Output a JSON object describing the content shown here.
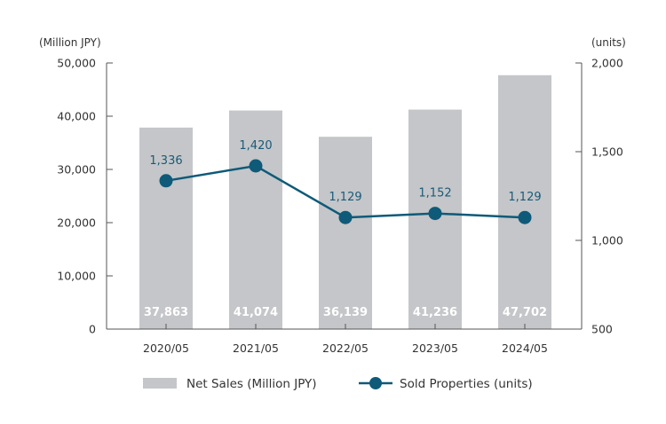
{
  "chart_data": {
    "type": "bar",
    "categories": [
      "2020/05",
      "2021/05",
      "2022/05",
      "2023/05",
      "2024/05"
    ],
    "series": [
      {
        "name": "Net Sales (Million JPY)",
        "type": "bar",
        "axis": "left",
        "values": [
          37863,
          41074,
          36139,
          41236,
          47702
        ],
        "labels": [
          "37,863",
          "41,074",
          "36,139",
          "41,236",
          "47,702"
        ],
        "color": "#c4c6c9"
      },
      {
        "name": "Sold Properties (units)",
        "type": "line",
        "axis": "right",
        "values": [
          1336,
          1420,
          1129,
          1152,
          1129
        ],
        "labels": [
          "1,336",
          "1,420",
          "1,129",
          "1,152",
          "1,129"
        ],
        "color": "#0e5a78"
      }
    ],
    "left_axis": {
      "unit_label": "(Million JPY)",
      "ylim": [
        0,
        50000
      ],
      "ticks": [
        0,
        10000,
        20000,
        30000,
        40000,
        50000
      ],
      "tick_labels": [
        "0",
        "10,000",
        "20,000",
        "30,000",
        "40,000",
        "50,000"
      ]
    },
    "right_axis": {
      "unit_label": "(units)",
      "ylim": [
        500,
        2000
      ],
      "ticks": [
        500,
        1000,
        1500,
        2000
      ],
      "tick_labels": [
        "500",
        "1,000",
        "1,500",
        "2,000"
      ]
    },
    "grid": false,
    "legend_position": "bottom"
  }
}
